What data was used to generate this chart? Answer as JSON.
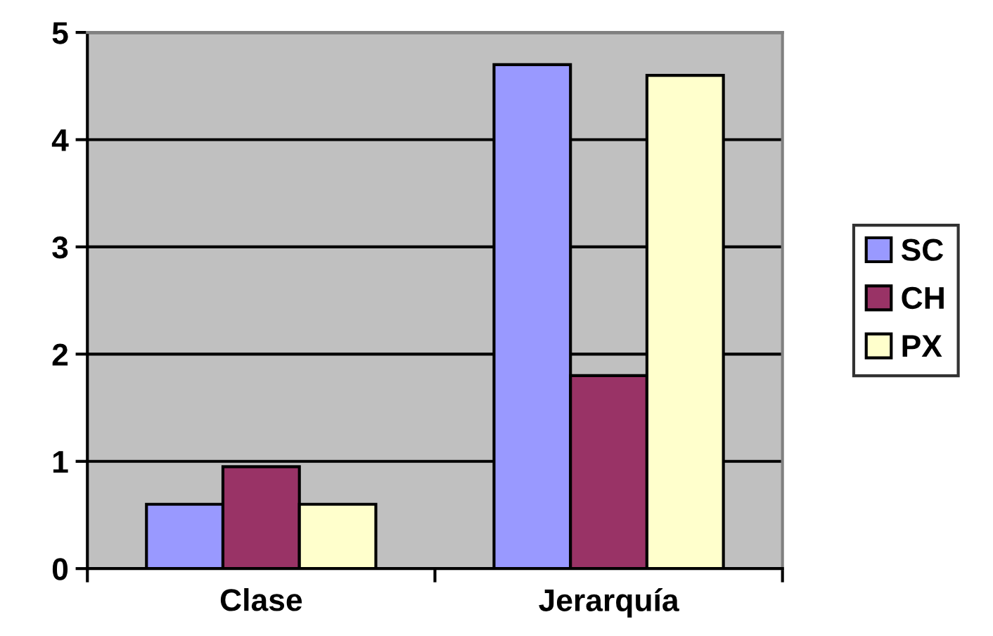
{
  "chart_data": {
    "type": "bar",
    "categories": [
      "Clase",
      "Jerarquía"
    ],
    "series": [
      {
        "name": "SC",
        "color": "#9999ff",
        "values": [
          0.6,
          4.7
        ]
      },
      {
        "name": "CH",
        "color": "#993366",
        "values": [
          0.95,
          1.8
        ]
      },
      {
        "name": "PX",
        "color": "#ffffcc",
        "values": [
          0.6,
          4.6
        ]
      }
    ],
    "ylim": [
      0,
      5
    ],
    "yticks": [
      0,
      1,
      2,
      3,
      4,
      5
    ],
    "grid": "y",
    "legend": "right"
  }
}
